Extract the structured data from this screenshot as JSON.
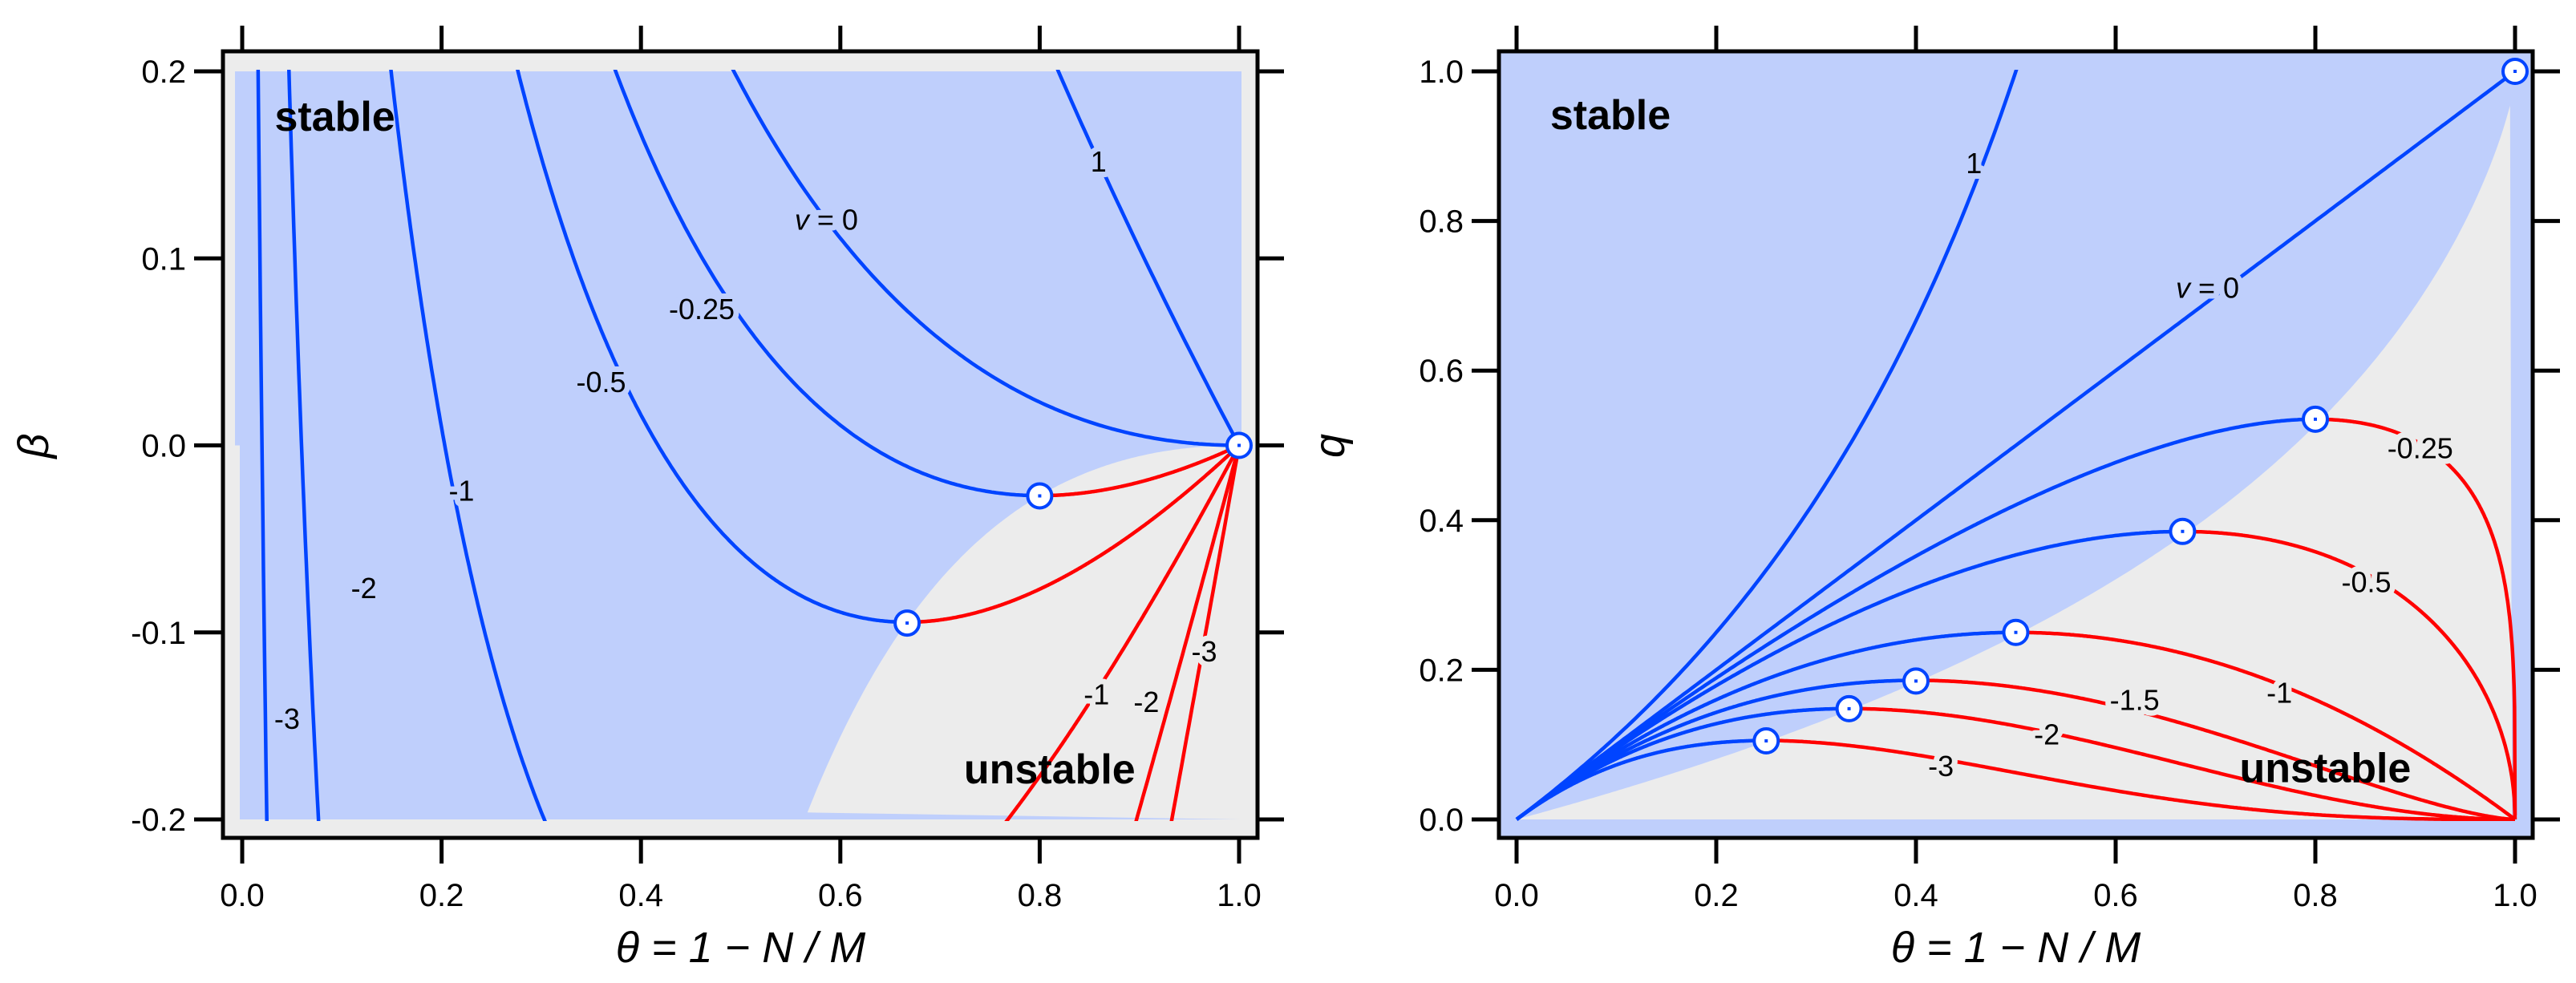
{
  "colors": {
    "stable_region": "#bfcffc",
    "unstable_region": "#ececec",
    "stable_curve": "#0044ff",
    "unstable_curve": "#ff0000",
    "marker_fill": "#ffffff",
    "frame": "#000000"
  },
  "chart_data": [
    {
      "type": "line",
      "title": "",
      "xlabel": "θ = 1 − N / M",
      "ylabel": "β",
      "xlim": [
        0,
        1
      ],
      "ylim": [
        -0.2,
        0.2
      ],
      "grid": false,
      "legend": "none",
      "xticks": [
        "0.0",
        "0.2",
        "0.4",
        "0.6",
        "0.8",
        "1.0"
      ],
      "yticks": [
        "-0.2",
        "-0.1",
        "0.0",
        "0.1",
        "0.2"
      ],
      "region_labels": {
        "stable": "stable",
        "unstable": "unstable"
      },
      "series": [
        {
          "name": "1",
          "v": 1
        },
        {
          "name": "v = 0",
          "v": 0
        },
        {
          "name": "-0.25",
          "v": -0.25
        },
        {
          "name": "-0.5",
          "v": -0.5
        },
        {
          "name": "-1",
          "v": -1
        },
        {
          "name": "-2",
          "v": -2
        },
        {
          "name": "-3",
          "v": -3
        }
      ],
      "markers": [
        [
          1.0,
          0.0
        ],
        [
          0.8,
          -0.027
        ],
        [
          0.667,
          -0.095
        ]
      ]
    },
    {
      "type": "line",
      "title": "",
      "xlabel": "θ = 1 − N / M",
      "ylabel": "q",
      "xlim": [
        0,
        1
      ],
      "ylim": [
        0,
        1
      ],
      "grid": false,
      "legend": "none",
      "xticks": [
        "0.0",
        "0.2",
        "0.4",
        "0.6",
        "0.8",
        "1.0"
      ],
      "yticks": [
        "0.0",
        "0.2",
        "0.4",
        "0.6",
        "0.8",
        "1.0"
      ],
      "region_labels": {
        "stable": "stable",
        "unstable": "unstable"
      },
      "series": [
        {
          "name": "1",
          "v": 1
        },
        {
          "name": "v = 0",
          "v": 0
        },
        {
          "name": "-0.25",
          "v": -0.25
        },
        {
          "name": "-0.5",
          "v": -0.5
        },
        {
          "name": "-1",
          "v": -1
        },
        {
          "name": "-1.5",
          "v": -1.5
        },
        {
          "name": "-2",
          "v": -2
        },
        {
          "name": "-3",
          "v": -3
        }
      ],
      "markers": [
        [
          1.0,
          1.0
        ],
        [
          0.8,
          0.535
        ],
        [
          0.667,
          0.385
        ],
        [
          0.5,
          0.25
        ],
        [
          0.4,
          0.185
        ],
        [
          0.333,
          0.148
        ],
        [
          0.25,
          0.105
        ]
      ]
    }
  ]
}
